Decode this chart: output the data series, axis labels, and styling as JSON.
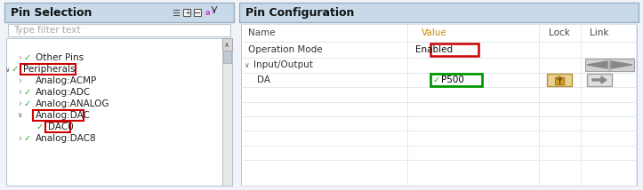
{
  "figsize": [
    7.23,
    2.14
  ],
  "dpi": 100,
  "bg_color": "#f0f4f8",
  "left_header_bg": "#c8daea",
  "right_header_bg": "#c8daea",
  "panel_bg": "#ffffff",
  "panel_border": "#9aafc0",
  "filter_box_bg": "#ffffff",
  "filter_box_border": "#c0c8d0",
  "tree_bg": "#ffffff",
  "tree_border": "#9aafc0",
  "scrollbar_bg": "#e8e8e8",
  "scrollbar_thumb": "#c0c8d0",
  "blue_row_bg": "#d0e4f8",
  "title_left": "Pin Selection",
  "title_right": "Pin Configuration",
  "filter_text": "Type filter text",
  "check_color": "#22aa22",
  "red_box_color": "#cc0000",
  "green_box_color": "#009900",
  "row_line_color": "#dde4ee",
  "col_line_color": "#dde4ee",
  "value_header_color": "#cc8800",
  "name_header_color": "#555555",
  "enabled_text_color": "#000000",
  "p500_check_color": "#22aa22",
  "p500_text_color": "#000000",
  "lock_bg": "#e8d090",
  "lock_border": "#b89030",
  "link_bg": "#e0e0e0",
  "link_border": "#a0a0a0",
  "nav_bg": "#d0d0d0",
  "nav_border": "#a0a0a0"
}
